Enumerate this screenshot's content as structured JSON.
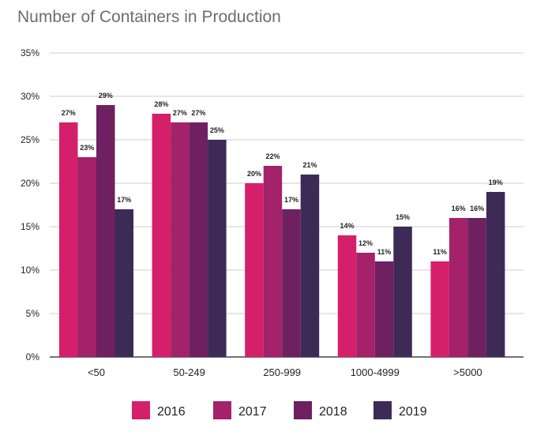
{
  "chart_data": {
    "type": "bar",
    "title": "Number of Containers in Production",
    "categories": [
      "<50",
      "50-249",
      "250-999",
      "1000-4999",
      ">5000"
    ],
    "series": [
      {
        "name": "2016",
        "values": [
          27,
          28,
          20,
          14,
          11
        ],
        "labels": [
          "27%",
          "28%",
          "20%",
          "14%",
          "11%"
        ],
        "color": "#d51f6a"
      },
      {
        "name": "2017",
        "values": [
          23,
          27,
          22,
          12,
          16
        ],
        "labels": [
          "23%",
          "27%",
          "22%",
          "12%",
          "16%"
        ],
        "color": "#a3226a"
      },
      {
        "name": "2018",
        "values": [
          29,
          27,
          17,
          11,
          16
        ],
        "labels": [
          "29%",
          "27%",
          "17%",
          "11%",
          "16%"
        ],
        "color": "#6e2060"
      },
      {
        "name": "2019",
        "values": [
          17,
          25,
          21,
          15,
          19
        ],
        "labels": [
          "17%",
          "25%",
          "21%",
          "15%",
          "19%"
        ],
        "color": "#3e2a57"
      }
    ],
    "ylim": [
      0,
      35
    ],
    "yticks": [
      0,
      5,
      10,
      15,
      20,
      25,
      30,
      35
    ],
    "ytick_labels": [
      "0%",
      "5%",
      "10%",
      "15%",
      "20%",
      "25%",
      "30%",
      "35%"
    ],
    "grid": true,
    "legend_placement": "bottom"
  }
}
